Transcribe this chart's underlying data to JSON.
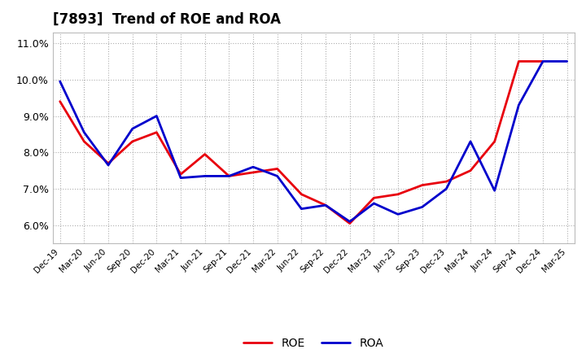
{
  "title": "[7893]  Trend of ROE and ROA",
  "x_labels": [
    "Dec-19",
    "Mar-20",
    "Jun-20",
    "Sep-20",
    "Dec-20",
    "Mar-21",
    "Jun-21",
    "Sep-21",
    "Dec-21",
    "Mar-22",
    "Jun-22",
    "Sep-22",
    "Dec-22",
    "Mar-23",
    "Jun-23",
    "Sep-23",
    "Dec-23",
    "Mar-24",
    "Jun-24",
    "Sep-24",
    "Dec-24",
    "Mar-25"
  ],
  "ROE": [
    9.4,
    8.3,
    7.7,
    8.3,
    8.55,
    7.4,
    7.95,
    7.35,
    7.45,
    7.55,
    6.85,
    6.55,
    6.05,
    6.75,
    6.85,
    7.1,
    7.2,
    7.5,
    8.3,
    10.5,
    10.5,
    null
  ],
  "ROA": [
    9.95,
    8.55,
    7.65,
    8.65,
    9.0,
    7.3,
    7.35,
    7.35,
    7.6,
    7.35,
    6.45,
    6.55,
    6.1,
    6.6,
    6.3,
    6.5,
    7.0,
    8.3,
    6.95,
    9.3,
    10.5,
    10.5
  ],
  "ROE_color": "#e8000d",
  "ROA_color": "#0000cc",
  "ylim": [
    5.5,
    11.3
  ],
  "yticks": [
    6.0,
    7.0,
    8.0,
    9.0,
    10.0,
    11.0
  ],
  "ytick_labels": [
    "6.0%",
    "7.0%",
    "8.0%",
    "9.0%",
    "10.0%",
    "11.0%"
  ],
  "grid_color": "#999999",
  "bg_color": "#ffffff",
  "plot_bg_color": "#ffffff",
  "title_fontsize": 12,
  "legend_fontsize": 10,
  "linewidth": 2.0
}
